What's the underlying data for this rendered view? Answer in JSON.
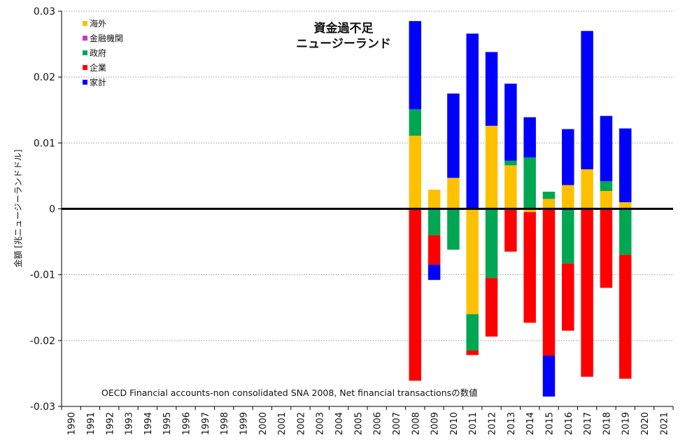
{
  "chart_data": {
    "type": "bar",
    "stacked": true,
    "title": [
      "資金過不足",
      "ニュージーランド"
    ],
    "ylabel": "金額 [兆ニュージーランドドル]",
    "xlabel": "",
    "ylim": [
      -0.03,
      0.03
    ],
    "yticks": [
      -0.03,
      -0.02,
      -0.01,
      0,
      0.01,
      0.02,
      0.03
    ],
    "ytick_labels": [
      "-0.03",
      "-0.02",
      "-0.01",
      "0",
      "0.01",
      "0.02",
      "0.03"
    ],
    "grid": true,
    "legend_position": "top-left",
    "source_note": "OECD Financial accounts-non consolidated SNA 2008, Net financial transactionsの数値",
    "categories": [
      "1990",
      "1991",
      "1992",
      "1993",
      "1994",
      "1995",
      "1996",
      "1997",
      "1998",
      "1999",
      "2000",
      "2001",
      "2002",
      "2003",
      "2004",
      "2005",
      "2006",
      "2007",
      "2008",
      "2009",
      "2010",
      "2011",
      "2012",
      "2013",
      "2014",
      "2015",
      "2016",
      "2017",
      "2018",
      "2019",
      "2020",
      "2021"
    ],
    "series": [
      {
        "name": "海外",
        "color": "#FFC000",
        "values": [
          null,
          null,
          null,
          null,
          null,
          null,
          null,
          null,
          null,
          null,
          null,
          null,
          null,
          null,
          null,
          null,
          null,
          null,
          0.0111,
          0.0029,
          0.0047,
          -0.016,
          0.0126,
          0.0066,
          -0.0005,
          0.0015,
          0.0036,
          0.006,
          0.0027,
          0.001,
          null,
          null
        ]
      },
      {
        "name": "金融機関",
        "color": "#CC33CC",
        "values": [
          null,
          null,
          null,
          null,
          null,
          null,
          null,
          null,
          null,
          null,
          null,
          null,
          null,
          null,
          null,
          null,
          null,
          null,
          0,
          0,
          0,
          0,
          0,
          0,
          0,
          0,
          0,
          0,
          0,
          0,
          null,
          null
        ]
      },
      {
        "name": "政府",
        "color": "#00A651",
        "values": [
          null,
          null,
          null,
          null,
          null,
          null,
          null,
          null,
          null,
          null,
          null,
          null,
          null,
          null,
          null,
          null,
          null,
          null,
          0.004,
          -0.004,
          -0.0062,
          -0.0055,
          -0.0105,
          0.0007,
          0.0078,
          0.0011,
          -0.0083,
          0,
          0.0015,
          -0.007,
          null,
          null
        ]
      },
      {
        "name": "企業",
        "color": "#FF0000",
        "values": [
          null,
          null,
          null,
          null,
          null,
          null,
          null,
          null,
          null,
          null,
          null,
          null,
          null,
          null,
          null,
          null,
          null,
          null,
          -0.0261,
          -0.0045,
          0,
          -0.0007,
          -0.0089,
          -0.0065,
          -0.0168,
          -0.0223,
          -0.0102,
          -0.0255,
          -0.012,
          -0.0188,
          null,
          null
        ]
      },
      {
        "name": "家計",
        "color": "#0000FF",
        "values": [
          null,
          null,
          null,
          null,
          null,
          null,
          null,
          null,
          null,
          null,
          null,
          null,
          null,
          null,
          null,
          null,
          null,
          null,
          0.0134,
          -0.0023,
          0.0128,
          0.0266,
          0.0112,
          0.0117,
          0.0061,
          -0.0062,
          0.0085,
          0.021,
          0.0099,
          0.0112,
          null,
          null
        ]
      }
    ]
  }
}
